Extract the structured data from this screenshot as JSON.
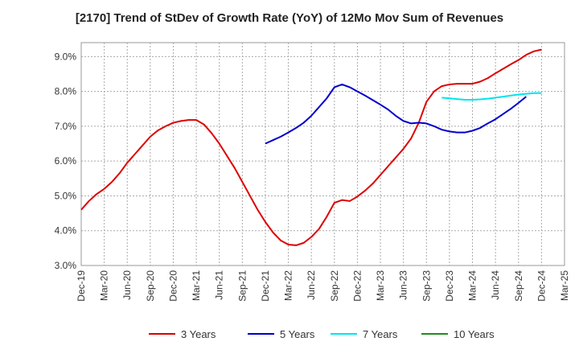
{
  "chart_data": {
    "type": "line",
    "title": "[2170]  Trend of StDev of Growth Rate (YoY) of 12Mo Mov Sum of Revenues",
    "xlabel": "",
    "ylabel": "",
    "ylim": [
      3.0,
      9.4
    ],
    "y_ticks": [
      3.0,
      4.0,
      5.0,
      6.0,
      7.0,
      8.0,
      9.0
    ],
    "y_tick_labels": [
      "3.0%",
      "4.0%",
      "5.0%",
      "6.0%",
      "7.0%",
      "8.0%",
      "9.0%"
    ],
    "x_tick_labels": [
      "Dec-19",
      "Mar-20",
      "Jun-20",
      "Sep-20",
      "Dec-20",
      "Mar-21",
      "Jun-21",
      "Sep-21",
      "Dec-21",
      "Mar-22",
      "Jun-22",
      "Sep-22",
      "Dec-22",
      "Mar-23",
      "Jun-23",
      "Sep-23",
      "Dec-23",
      "Mar-24",
      "Jun-24",
      "Sep-24",
      "Dec-24",
      "Mar-25"
    ],
    "grid": true,
    "legend_position": "bottom",
    "series": [
      {
        "name": "3 Years",
        "color": "#dd0000",
        "start_index": 0,
        "values": [
          4.6,
          4.85,
          5.05,
          5.2,
          5.4,
          5.65,
          5.95,
          6.2,
          6.45,
          6.7,
          6.88,
          7.0,
          7.1,
          7.15,
          7.18,
          7.18,
          7.05,
          6.8,
          6.5,
          6.15,
          5.8,
          5.4,
          5.0,
          4.6,
          4.25,
          3.95,
          3.72,
          3.6,
          3.58,
          3.65,
          3.82,
          4.05,
          4.4,
          4.8,
          4.88,
          4.85,
          4.98,
          5.15,
          5.35,
          5.6,
          5.85,
          6.1,
          6.35,
          6.65,
          7.1,
          7.7,
          8.0,
          8.15,
          8.2,
          8.22,
          8.22,
          8.22,
          8.28,
          8.38,
          8.52,
          8.65,
          8.78,
          8.9,
          9.05,
          9.15,
          9.2
        ]
      },
      {
        "name": "5 Years",
        "color": "#0000cc",
        "start_index": 24,
        "values": [
          6.5,
          6.6,
          6.7,
          6.82,
          6.95,
          7.1,
          7.3,
          7.55,
          7.8,
          8.12,
          8.2,
          8.12,
          8.0,
          7.88,
          7.75,
          7.62,
          7.48,
          7.3,
          7.15,
          7.08,
          7.1,
          7.08,
          7.0,
          6.9,
          6.85,
          6.82,
          6.82,
          6.87,
          6.95,
          7.08,
          7.2,
          7.35,
          7.5,
          7.67,
          7.85
        ]
      },
      {
        "name": "7 Years",
        "color": "#00e5ee",
        "start_index": 47,
        "values": [
          7.82,
          7.8,
          7.78,
          7.76,
          7.76,
          7.77,
          7.79,
          7.82,
          7.85,
          7.88,
          7.91,
          7.93,
          7.95,
          7.95
        ]
      },
      {
        "name": "10 Years",
        "color": "#228b22",
        "start_index": 0,
        "values": []
      }
    ]
  }
}
